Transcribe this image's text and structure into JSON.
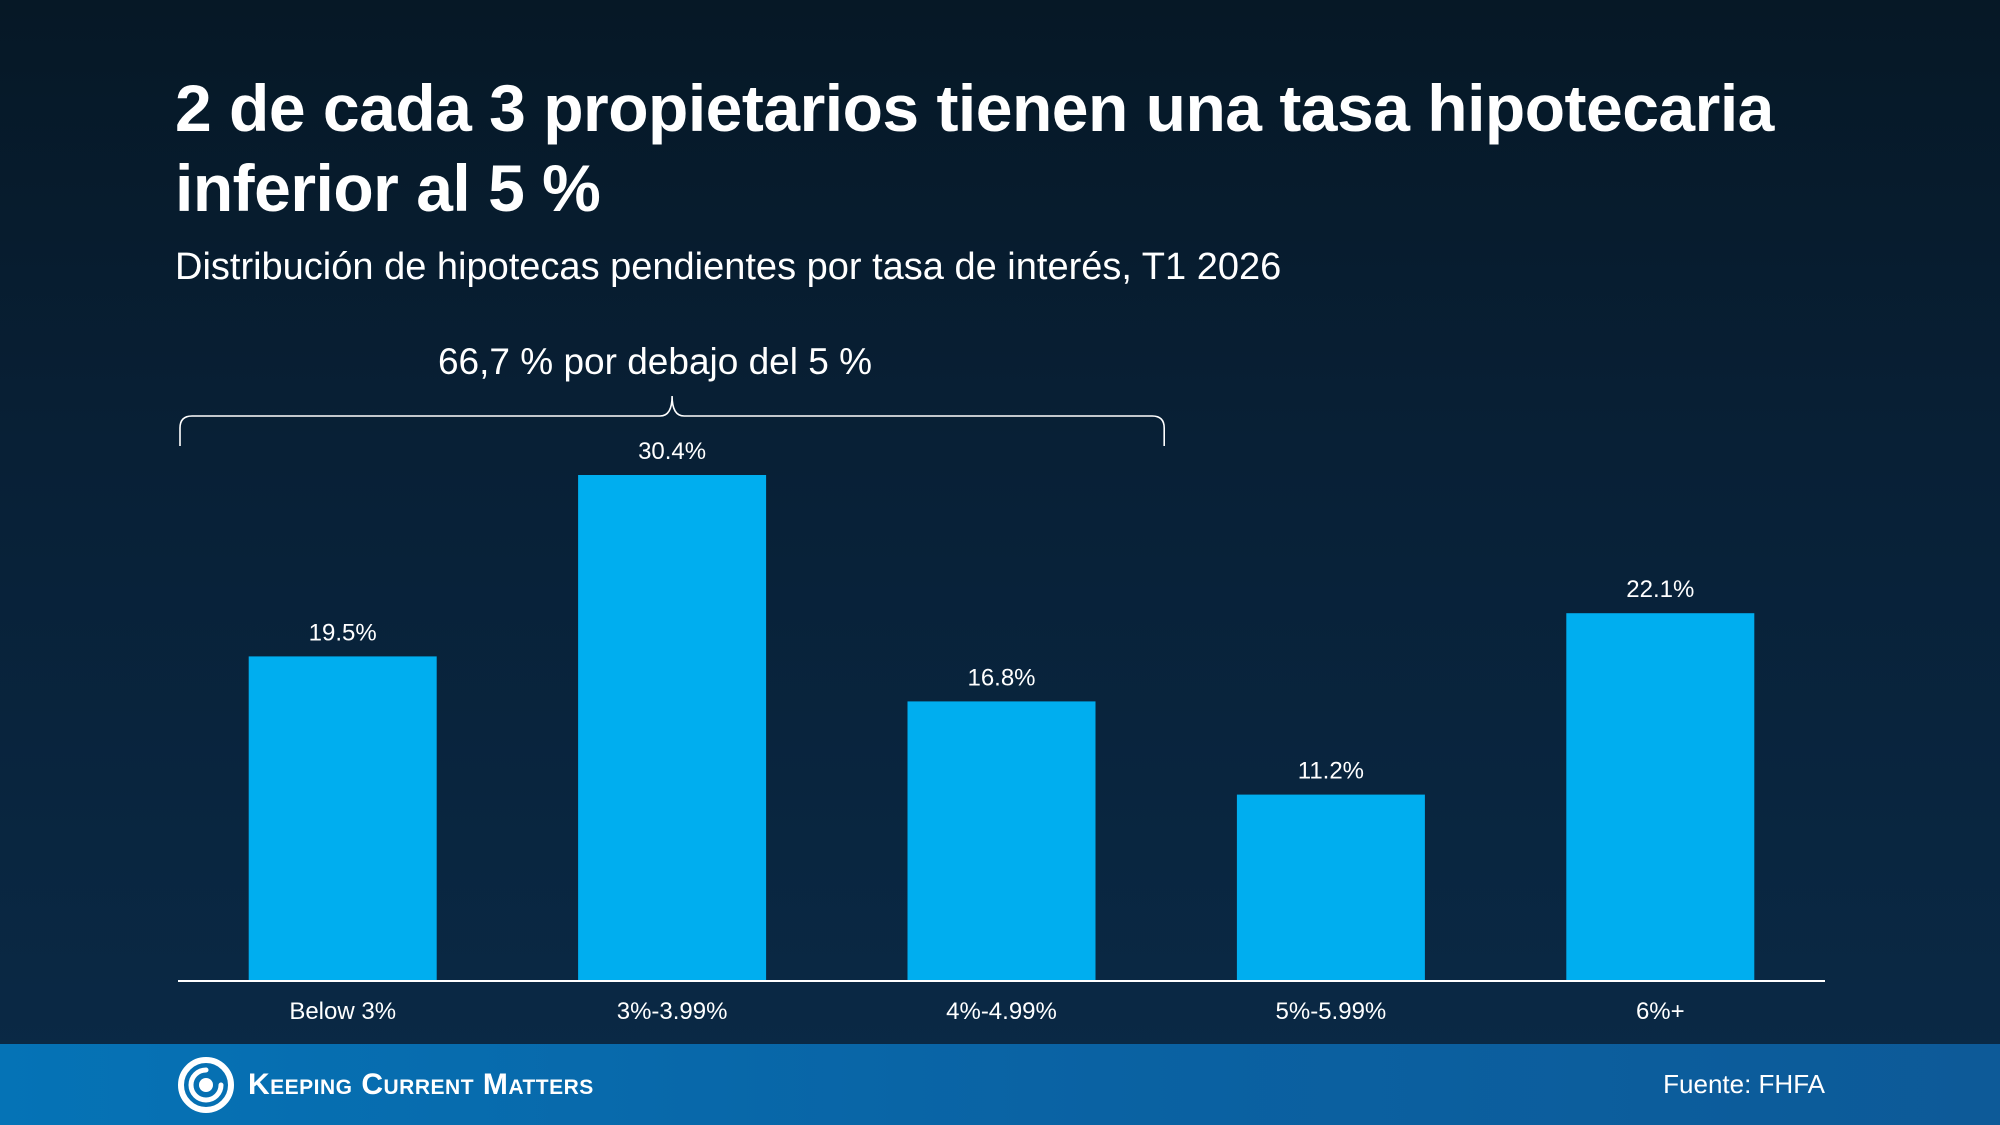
{
  "title": "2 de cada 3 propietarios tienen una tasa hipotecaria inferior al 5 %",
  "subtitle": "Distribución de hipotecas pendientes por tasa de interés, T1 2026",
  "bracket_label": "66,7 % por debajo del 5 %",
  "footer": {
    "brand": "Keeping Current Matters",
    "source": "Fuente: FHFA"
  },
  "colors": {
    "bar": "#00aeef",
    "axis": "#ffffff",
    "background_top": "#061826",
    "background_bottom": "#0a2a47",
    "footer": "#0573b6"
  },
  "chart_data": {
    "type": "bar",
    "categories": [
      "Below 3%",
      "3%-3.99%",
      "4%-4.99%",
      "5%-5.99%",
      "6%+"
    ],
    "values": [
      19.5,
      30.4,
      16.8,
      11.2,
      22.1
    ],
    "value_labels": [
      "19.5%",
      "30.4%",
      "16.8%",
      "11.2%",
      "22.1%"
    ],
    "ylim": [
      0,
      30.4
    ],
    "grid": false,
    "legend": "none",
    "bracket": {
      "from_category": "Below 3%",
      "to_category": "4%-4.99%"
    }
  }
}
